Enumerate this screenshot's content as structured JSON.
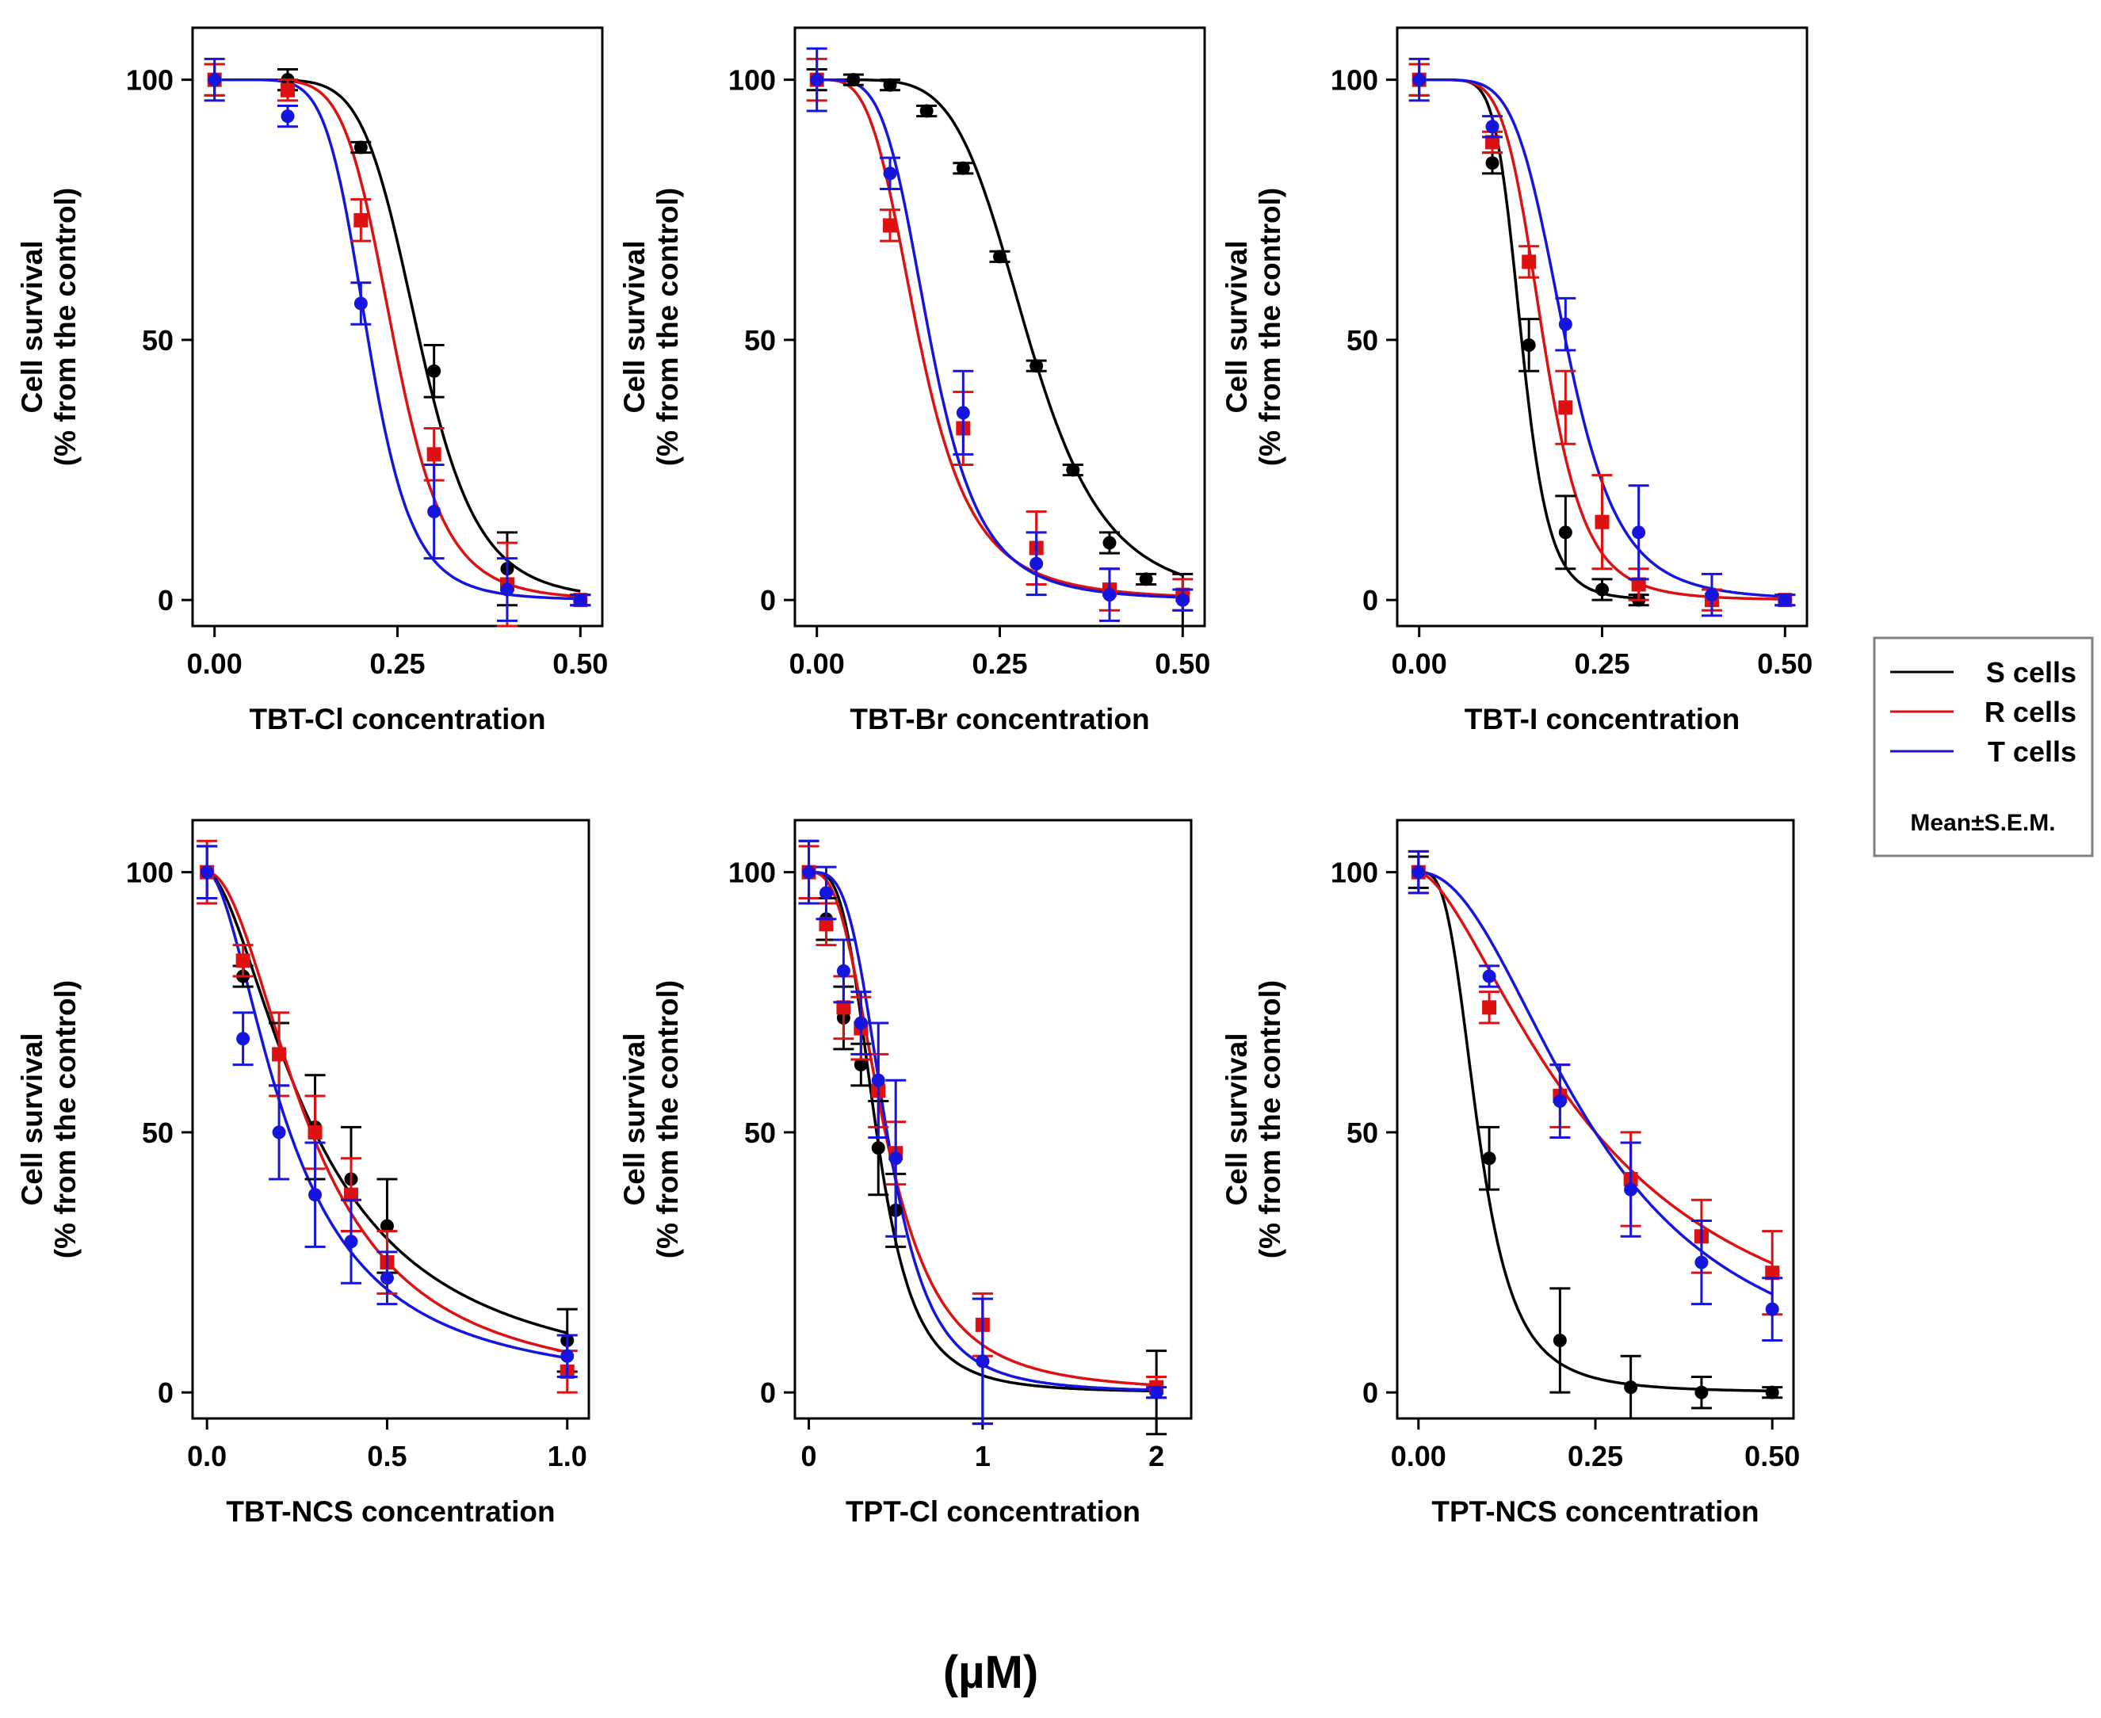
{
  "colors": {
    "S": "#000000",
    "R": "#dd1111",
    "T": "#1515dd"
  },
  "chart_data": [
    {
      "type": "line",
      "panel": "TBT-Cl",
      "xlabel": "TBT-Cl concentration",
      "ylabel": [
        "Cell survival",
        "(% from the control)"
      ],
      "xlim": [
        -0.03,
        0.53
      ],
      "ylim": [
        -5,
        110
      ],
      "xticks": [
        0,
        0.25,
        0.5
      ],
      "xticklabels": [
        "0.00",
        "0.25",
        "0.50"
      ],
      "yticks": [
        0,
        50,
        100
      ],
      "yticklabels": [
        "0",
        "50",
        "100"
      ],
      "series": [
        {
          "name": "S cells",
          "key": "S",
          "marker": "circle",
          "ic50": 0.28,
          "hill": 7.0,
          "x": [
            0,
            0.1,
            0.2,
            0.3,
            0.4,
            0.5
          ],
          "y": [
            100,
            100,
            87,
            44,
            6,
            0
          ],
          "err": [
            3,
            2,
            1,
            5,
            7,
            1
          ]
        },
        {
          "name": "R cells",
          "key": "R",
          "marker": "square",
          "ic50": 0.245,
          "hill": 7.0,
          "x": [
            0,
            0.1,
            0.2,
            0.3,
            0.4,
            0.5
          ],
          "y": [
            100,
            98,
            73,
            28,
            3,
            0
          ],
          "err": [
            3,
            2,
            4,
            5,
            8,
            1
          ]
        },
        {
          "name": "T cells",
          "key": "T",
          "marker": "circle",
          "ic50": 0.21,
          "hill": 7.0,
          "x": [
            0,
            0.1,
            0.2,
            0.3,
            0.4,
            0.5
          ],
          "y": [
            100,
            93,
            57,
            17,
            2,
            0
          ],
          "err": [
            4,
            2,
            4,
            9,
            6,
            1
          ]
        }
      ]
    },
    {
      "type": "line",
      "panel": "TBT-Br",
      "xlabel": "TBT-Br concentration",
      "ylabel": [
        "Cell survival",
        "(% from the control)"
      ],
      "xlim": [
        -0.03,
        0.53
      ],
      "ylim": [
        -5,
        110
      ],
      "xticks": [
        0,
        0.25,
        0.5
      ],
      "xticklabels": [
        "0.00",
        "0.25",
        "0.50"
      ],
      "yticks": [
        0,
        50,
        100
      ],
      "yticklabels": [
        "0",
        "50",
        "100"
      ],
      "series": [
        {
          "name": "S cells",
          "key": "S",
          "marker": "circle",
          "ic50": 0.29,
          "hill": 5.5,
          "x": [
            0,
            0.05,
            0.1,
            0.15,
            0.2,
            0.25,
            0.3,
            0.35,
            0.4,
            0.45,
            0.5
          ],
          "y": [
            100,
            100,
            99,
            94,
            83,
            66,
            45,
            25,
            11,
            4,
            0
          ],
          "err": [
            2,
            1,
            1,
            1,
            1,
            1,
            1,
            1,
            2,
            1,
            5
          ]
        },
        {
          "name": "R cells",
          "key": "R",
          "marker": "square",
          "ic50": 0.14,
          "hill": 3.8,
          "x": [
            0,
            0.1,
            0.2,
            0.3,
            0.4,
            0.5
          ],
          "y": [
            100,
            72,
            33,
            10,
            2,
            1
          ],
          "err": [
            4,
            3,
            7,
            7,
            4,
            3
          ]
        },
        {
          "name": "T cells",
          "key": "T",
          "marker": "circle",
          "ic50": 0.155,
          "hill": 4.5,
          "x": [
            0,
            0.1,
            0.2,
            0.3,
            0.4,
            0.5
          ],
          "y": [
            100,
            82,
            36,
            7,
            1,
            0
          ],
          "err": [
            6,
            3,
            8,
            6,
            5,
            2
          ]
        }
      ]
    },
    {
      "type": "line",
      "panel": "TBT-I",
      "xlabel": "TBT-I concentration",
      "ylabel": [
        "Cell survival",
        "(% from the control)"
      ],
      "xlim": [
        -0.03,
        0.53
      ],
      "ylim": [
        -5,
        110
      ],
      "xticks": [
        0,
        0.25,
        0.5
      ],
      "xticklabels": [
        "0.00",
        "0.25",
        "0.50"
      ],
      "yticks": [
        0,
        50,
        100
      ],
      "yticklabels": [
        "0",
        "50",
        "100"
      ],
      "series": [
        {
          "name": "S cells",
          "key": "S",
          "marker": "circle",
          "ic50": 0.14,
          "hill": 7.5,
          "x": [
            0,
            0.1,
            0.15,
            0.2,
            0.25,
            0.3
          ],
          "y": [
            100,
            84,
            49,
            13,
            2,
            0
          ],
          "err": [
            3,
            2,
            5,
            7,
            2,
            1
          ]
        },
        {
          "name": "R cells",
          "key": "R",
          "marker": "square",
          "ic50": 0.17,
          "hill": 6.0,
          "x": [
            0,
            0.1,
            0.15,
            0.2,
            0.25,
            0.3,
            0.4,
            0.5
          ],
          "y": [
            100,
            88,
            65,
            37,
            15,
            3,
            0,
            0
          ],
          "err": [
            3,
            2,
            3,
            7,
            9,
            3,
            2,
            1
          ]
        },
        {
          "name": "T cells",
          "key": "T",
          "marker": "circle",
          "ic50": 0.2,
          "hill": 5.5,
          "x": [
            0,
            0.1,
            0.2,
            0.3,
            0.4,
            0.5
          ],
          "y": [
            100,
            91,
            53,
            13,
            1,
            0
          ],
          "err": [
            4,
            2,
            5,
            9,
            4,
            1
          ]
        }
      ]
    },
    {
      "type": "line",
      "panel": "TBT-NCS",
      "xlabel": "TBT-NCS concentration",
      "ylabel": [
        "Cell survival",
        "(% from the control)"
      ],
      "xlim": [
        -0.04,
        1.06
      ],
      "ylim": [
        -5,
        110
      ],
      "xticks": [
        0,
        0.5,
        1.0
      ],
      "xticklabels": [
        "0.0",
        "0.5",
        "1.0"
      ],
      "yticks": [
        0,
        50,
        100
      ],
      "yticklabels": [
        "0",
        "50",
        "100"
      ],
      "series": [
        {
          "name": "S cells",
          "key": "S",
          "marker": "circle",
          "ic50": 0.3,
          "hill": 1.7,
          "x": [
            0,
            0.1,
            0.2,
            0.3,
            0.4,
            0.5,
            1.0
          ],
          "y": [
            100,
            80,
            65,
            51,
            41,
            32,
            10
          ],
          "err": [
            5,
            2,
            6,
            10,
            10,
            9,
            6
          ]
        },
        {
          "name": "R cells",
          "key": "R",
          "marker": "square",
          "ic50": 0.29,
          "hill": 2.0,
          "x": [
            0,
            0.1,
            0.2,
            0.3,
            0.4,
            0.5,
            1.0
          ],
          "y": [
            100,
            83,
            65,
            50,
            38,
            25,
            4
          ],
          "err": [
            6,
            3,
            8,
            7,
            7,
            6,
            4
          ]
        },
        {
          "name": "T cells",
          "key": "T",
          "marker": "circle",
          "ic50": 0.23,
          "hill": 1.8,
          "x": [
            0,
            0.1,
            0.2,
            0.3,
            0.4,
            0.5,
            1.0
          ],
          "y": [
            100,
            68,
            50,
            38,
            29,
            22,
            7
          ],
          "err": [
            5,
            5,
            9,
            10,
            8,
            5,
            4
          ]
        }
      ]
    },
    {
      "type": "line",
      "panel": "TPT-Cl",
      "xlabel": "TPT-Cl concentration",
      "ylabel": [
        "Cell survival",
        "(% from the control)"
      ],
      "xlim": [
        -0.08,
        2.2
      ],
      "ylim": [
        -5,
        110
      ],
      "xticks": [
        0,
        1,
        2
      ],
      "xticklabels": [
        "0",
        "1",
        "2"
      ],
      "yticks": [
        0,
        50,
        100
      ],
      "yticklabels": [
        "0",
        "50",
        "100"
      ],
      "series": [
        {
          "name": "S cells",
          "key": "S",
          "marker": "circle",
          "ic50": 0.39,
          "hill": 3.6,
          "x": [
            0,
            0.1,
            0.2,
            0.3,
            0.4,
            0.5,
            1.0,
            2.0
          ],
          "y": [
            100,
            91,
            72,
            63,
            47,
            35,
            6,
            0
          ],
          "err": [
            6,
            4,
            6,
            4,
            9,
            7,
            12,
            8
          ]
        },
        {
          "name": "R cells",
          "key": "R",
          "marker": "square",
          "ic50": 0.44,
          "hill": 2.8,
          "x": [
            0,
            0.1,
            0.2,
            0.3,
            0.4,
            0.5,
            1.0,
            2.0
          ],
          "y": [
            100,
            90,
            74,
            70,
            58,
            46,
            13,
            1
          ],
          "err": [
            5,
            4,
            6,
            6,
            7,
            6,
            6,
            2
          ]
        },
        {
          "name": "T cells",
          "key": "T",
          "marker": "circle",
          "ic50": 0.45,
          "hill": 3.6,
          "x": [
            0,
            0.1,
            0.2,
            0.3,
            0.4,
            0.5,
            1.0,
            2.0
          ],
          "y": [
            100,
            96,
            81,
            71,
            60,
            45,
            6,
            0
          ],
          "err": [
            6,
            5,
            6,
            6,
            11,
            15,
            12,
            1
          ]
        }
      ]
    },
    {
      "type": "line",
      "panel": "TPT-NCS",
      "xlabel": "TPT-NCS concentration",
      "ylabel": [
        "Cell survival",
        "(% from the control)"
      ],
      "xlim": [
        -0.03,
        0.53
      ],
      "ylim": [
        -5,
        110
      ],
      "xticks": [
        0,
        0.25,
        0.5
      ],
      "xticklabels": [
        "0.00",
        "0.25",
        "0.50"
      ],
      "yticks": [
        0,
        50,
        100
      ],
      "yticklabels": [
        "0",
        "50",
        "100"
      ],
      "series": [
        {
          "name": "S cells",
          "key": "S",
          "marker": "circle",
          "ic50": 0.085,
          "hill": 3.3,
          "x": [
            0,
            0.1,
            0.2,
            0.3,
            0.4,
            0.5
          ],
          "y": [
            100,
            45,
            10,
            1,
            0,
            0
          ],
          "err": [
            3,
            6,
            10,
            6,
            3,
            1
          ]
        },
        {
          "name": "R cells",
          "key": "R",
          "marker": "square",
          "ic50": 0.25,
          "hill": 1.6,
          "x": [
            0,
            0.1,
            0.2,
            0.3,
            0.4,
            0.5
          ],
          "y": [
            100,
            74,
            57,
            41,
            30,
            23
          ],
          "err": [
            4,
            3,
            6,
            9,
            7,
            8
          ]
        },
        {
          "name": "T cells",
          "key": "T",
          "marker": "circle",
          "ic50": 0.25,
          "hill": 2.1,
          "x": [
            0,
            0.1,
            0.2,
            0.3,
            0.4,
            0.5
          ],
          "y": [
            100,
            80,
            56,
            39,
            25,
            16
          ],
          "err": [
            4,
            2,
            7,
            9,
            8,
            6
          ]
        }
      ]
    }
  ],
  "legend": {
    "entries": [
      {
        "label": "S cells",
        "key": "S"
      },
      {
        "label": "R cells",
        "key": "R"
      },
      {
        "label": "T cells",
        "key": "T"
      }
    ],
    "note": "Mean±S.E.M."
  },
  "unit_label": "(µM)"
}
